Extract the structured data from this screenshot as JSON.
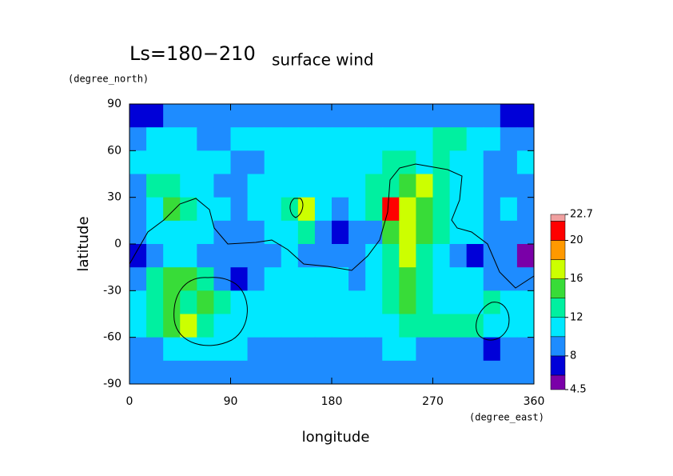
{
  "chart_data": {
    "type": "contour",
    "title": "Ls=180−210",
    "subtitle": "surface wind",
    "y_label": "latitude",
    "y_units": "(degree_north)",
    "x_label": "longitude",
    "x_units": "(degree_east)",
    "xlim": [
      0,
      360
    ],
    "xticks": [
      0,
      90,
      180,
      270,
      360
    ],
    "ylim": [
      -90,
      90
    ],
    "yticks": [
      -90,
      -60,
      -30,
      0,
      30,
      60,
      90
    ],
    "x": [
      7.5,
      22.5,
      37.5,
      52.5,
      67.5,
      82.5,
      97.5,
      112.5,
      127.5,
      142.5,
      157.5,
      172.5,
      187.5,
      202.5,
      217.5,
      232.5,
      247.5,
      262.5,
      277.5,
      292.5,
      307.5,
      322.5,
      337.5,
      352.5
    ],
    "y": [
      82.5,
      67.5,
      52.5,
      37.5,
      22.5,
      7.5,
      -7.5,
      -22.5,
      -37.5,
      -52.5,
      -67.5,
      -82.5
    ],
    "z": [
      [
        7,
        7,
        9,
        9,
        9,
        9,
        9,
        9,
        9,
        9,
        9,
        9,
        9,
        9,
        9,
        9,
        9,
        9,
        9,
        9,
        9,
        9,
        7,
        7
      ],
      [
        9,
        11,
        11,
        11,
        9,
        9,
        11,
        11,
        11,
        11,
        11,
        11,
        11,
        11,
        11,
        11,
        11,
        11,
        13,
        13,
        11,
        11,
        9,
        9
      ],
      [
        11,
        11,
        11,
        11,
        11,
        11,
        9,
        9,
        11,
        11,
        11,
        11,
        11,
        11,
        11,
        13,
        13,
        11,
        13,
        11,
        11,
        9,
        9,
        11
      ],
      [
        9,
        13,
        13,
        11,
        11,
        9,
        9,
        11,
        11,
        11,
        11,
        11,
        11,
        11,
        13,
        13,
        15,
        17,
        13,
        11,
        11,
        9,
        9,
        9
      ],
      [
        9,
        11,
        15,
        13,
        11,
        11,
        9,
        11,
        11,
        13,
        17,
        11,
        9,
        11,
        13,
        21,
        17,
        15,
        13,
        11,
        11,
        9,
        11,
        9
      ],
      [
        9,
        11,
        11,
        11,
        11,
        9,
        9,
        9,
        11,
        11,
        13,
        9,
        7,
        9,
        9,
        15,
        17,
        15,
        13,
        11,
        11,
        9,
        9,
        9
      ],
      [
        7,
        9,
        11,
        11,
        9,
        9,
        9,
        9,
        9,
        11,
        9,
        9,
        9,
        9,
        11,
        13,
        17,
        13,
        11,
        9,
        7,
        9,
        9,
        5
      ],
      [
        9,
        13,
        15,
        15,
        13,
        9,
        7,
        9,
        11,
        11,
        11,
        11,
        11,
        9,
        11,
        13,
        15,
        13,
        11,
        11,
        11,
        9,
        9,
        9
      ],
      [
        11,
        13,
        15,
        13,
        15,
        13,
        11,
        11,
        11,
        11,
        11,
        11,
        11,
        11,
        11,
        13,
        15,
        13,
        11,
        11,
        11,
        13,
        11,
        11
      ],
      [
        11,
        13,
        15,
        17,
        13,
        11,
        11,
        11,
        11,
        11,
        11,
        11,
        11,
        11,
        11,
        11,
        13,
        13,
        13,
        13,
        13,
        11,
        11,
        11
      ],
      [
        9,
        9,
        11,
        11,
        11,
        11,
        11,
        9,
        9,
        9,
        9,
        9,
        9,
        9,
        9,
        11,
        11,
        9,
        9,
        9,
        9,
        7,
        9,
        9
      ],
      [
        9,
        9,
        9,
        9,
        9,
        9,
        9,
        9,
        9,
        9,
        9,
        9,
        9,
        9,
        9,
        9,
        9,
        9,
        9,
        9,
        9,
        9,
        9,
        9
      ]
    ],
    "levels": [
      4.5,
      6,
      8,
      10,
      12,
      14,
      16,
      18,
      20,
      22,
      22.7
    ],
    "colors": [
      "#7a00a8",
      "#0000d8",
      "#1e8cff",
      "#00e8ff",
      "#00f0a0",
      "#38dc38",
      "#ccff00",
      "#ff9900",
      "#ff0000",
      "#f0a0a0"
    ],
    "colorbar_ticks": [
      4.5,
      8,
      12,
      16,
      20,
      22.7
    ]
  }
}
